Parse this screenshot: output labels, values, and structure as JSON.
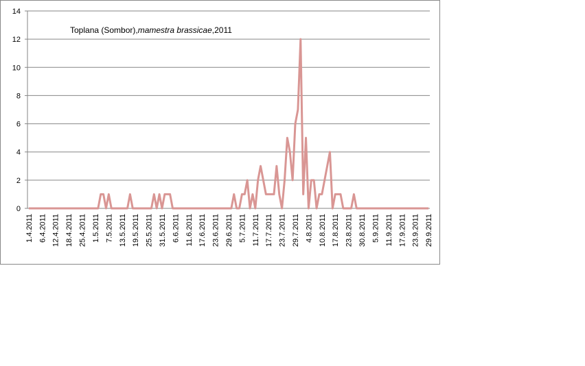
{
  "chart_data": {
    "type": "line",
    "title": [
      "Toplana  (Sombor),",
      "mamestra brassicae",
      ",2011"
    ],
    "categories": [
      "1.4.2011",
      null,
      null,
      null,
      null,
      "6.4.2011",
      null,
      null,
      null,
      null,
      "12.4.2011",
      null,
      null,
      null,
      null,
      "18.4.2011",
      null,
      null,
      null,
      null,
      "25.4.2011",
      null,
      null,
      null,
      null,
      "1.5.2011",
      null,
      null,
      null,
      null,
      "7.5.2011",
      null,
      null,
      null,
      null,
      "13.5.2011",
      null,
      null,
      null,
      null,
      "19.5.2011",
      null,
      null,
      null,
      null,
      "25.5.2011",
      null,
      null,
      null,
      null,
      "31.5.2011",
      null,
      null,
      null,
      null,
      "6.6.2011",
      null,
      null,
      null,
      null,
      "11.6.2011",
      null,
      null,
      null,
      null,
      "17.6.2011",
      null,
      null,
      null,
      null,
      "23.6.2011",
      null,
      null,
      null,
      null,
      "29.6.2011",
      null,
      null,
      null,
      null,
      "5.7.2011",
      null,
      null,
      null,
      null,
      "11.7.2011",
      null,
      null,
      null,
      null,
      "17.7.2011",
      null,
      null,
      null,
      null,
      "23.7.2011",
      null,
      null,
      null,
      null,
      "29.7.2011",
      null,
      null,
      null,
      null,
      "4.8.2011",
      null,
      null,
      null,
      null,
      "10.8.2011",
      null,
      null,
      null,
      null,
      "17.8.2011",
      null,
      null,
      null,
      null,
      "23.8.2011",
      null,
      null,
      null,
      null,
      "30.8.2011",
      null,
      null,
      null,
      null,
      "5.9.2011",
      null,
      null,
      null,
      null,
      "11.9.2011",
      null,
      null,
      null,
      null,
      "17.9.2011",
      null,
      null,
      null,
      null,
      "23.9.2011",
      null,
      null,
      null,
      null,
      "29.9.2011"
    ],
    "values": [
      0,
      0,
      0,
      0,
      0,
      0,
      0,
      0,
      0,
      0,
      0,
      0,
      0,
      0,
      0,
      0,
      0,
      0,
      0,
      0,
      0,
      0,
      0,
      0,
      0,
      0,
      0,
      1,
      1,
      0,
      1,
      0,
      0,
      0,
      0,
      0,
      0,
      0,
      1,
      0,
      0,
      0,
      0,
      0,
      0,
      0,
      0,
      1,
      0,
      1,
      0,
      1,
      1,
      1,
      0,
      0,
      0,
      0,
      0,
      0,
      0,
      0,
      0,
      0,
      0,
      0,
      0,
      0,
      0,
      0,
      0,
      0,
      0,
      0,
      0,
      0,
      0,
      1,
      0,
      0,
      1,
      1,
      2,
      0,
      1,
      0,
      2,
      3,
      2,
      1,
      1,
      1,
      1,
      3,
      1,
      0,
      2,
      5,
      4,
      2,
      6,
      7,
      12,
      1,
      5,
      0,
      2,
      2,
      0,
      1,
      1,
      2,
      3,
      4,
      0,
      1,
      1,
      1,
      0,
      0,
      0,
      0,
      1,
      0,
      0,
      0,
      0,
      0,
      0,
      0,
      0,
      0,
      0,
      0,
      0,
      0,
      0,
      0,
      0,
      0,
      0,
      0,
      0,
      0,
      0,
      0,
      0,
      0,
      0,
      0,
      0
    ],
    "color": "#d99694",
    "ylim": [
      0,
      14
    ],
    "yticks": [
      0,
      2,
      4,
      6,
      8,
      10,
      12,
      14
    ],
    "grid": true
  }
}
